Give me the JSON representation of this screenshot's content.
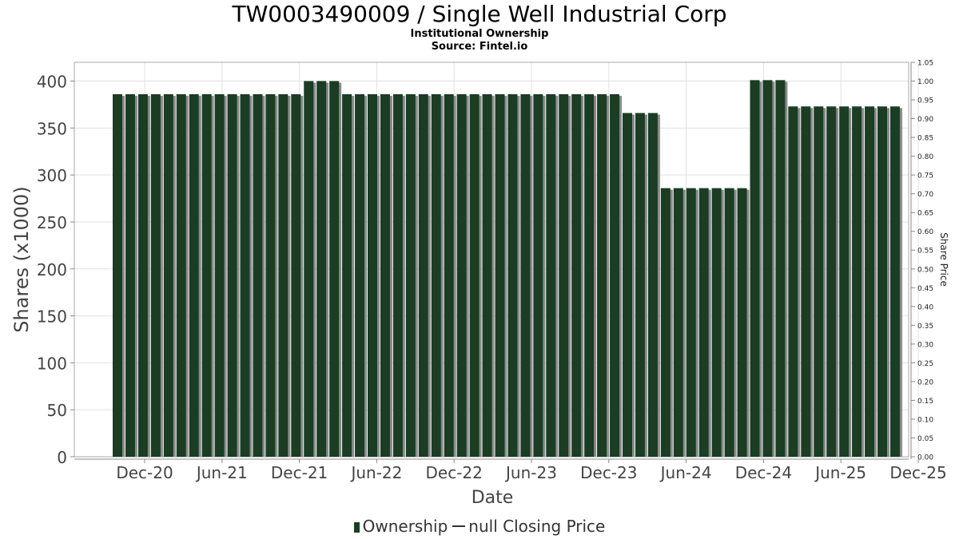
{
  "title": "TW0003490009 / Single Well Industrial Corp",
  "subtitle": "Institutional Ownership",
  "source": "Source: Fintel.io",
  "legend": {
    "ownership": "Ownership",
    "price": "null Closing Price"
  },
  "colors": {
    "bar": "#1a3d24",
    "bar_shadow": "#8a8a8a",
    "grid": "#e0e0e0"
  },
  "chart_data": {
    "type": "bar",
    "title": "TW0003490009 / Single Well Industrial Corp",
    "xlabel": "Date",
    "ylabel": "Shares (x1000)",
    "y2label": "Share Price",
    "ylim": [
      0,
      420
    ],
    "y2lim": [
      0,
      1.05
    ],
    "yticks": [
      "0",
      "50",
      "100",
      "150",
      "200",
      "250",
      "300",
      "350",
      "400"
    ],
    "y2ticks": [
      "0.00",
      "0.05",
      "0.10",
      "0.15",
      "0.20",
      "0.25",
      "0.30",
      "0.35",
      "0.40",
      "0.45",
      "0.50",
      "0.55",
      "0.60",
      "0.65",
      "0.70",
      "0.75",
      "0.80",
      "0.85",
      "0.90",
      "0.95",
      "1.00",
      "1.05"
    ],
    "xticks": [
      "Dec-20",
      "Jun-21",
      "Dec-21",
      "Jun-22",
      "Dec-22",
      "Jun-23",
      "Dec-23",
      "Jun-24",
      "Dec-24",
      "Jun-25",
      "Dec-25"
    ],
    "grid": true,
    "legend_position": "bottom",
    "series": [
      {
        "name": "Ownership",
        "values": [
          386,
          386,
          386,
          386,
          386,
          386,
          386,
          386,
          386,
          386,
          386,
          386,
          386,
          386,
          386,
          400,
          400,
          400,
          386,
          386,
          386,
          386,
          386,
          386,
          386,
          386,
          386,
          386,
          386,
          386,
          386,
          386,
          386,
          386,
          386,
          386,
          386,
          386,
          386,
          386,
          366,
          366,
          366,
          286,
          286,
          286,
          286,
          286,
          286,
          286,
          401,
          401,
          401,
          373,
          373,
          373,
          373,
          373,
          373,
          373,
          373,
          373
        ]
      }
    ]
  }
}
